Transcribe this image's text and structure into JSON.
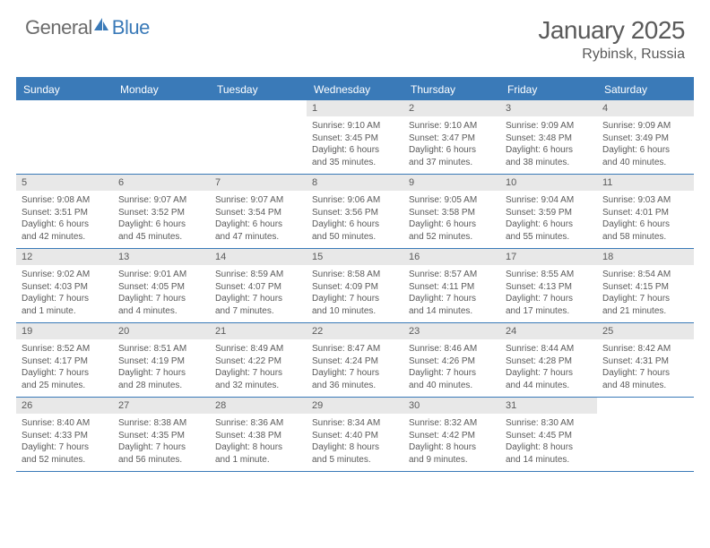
{
  "logo": {
    "general": "General",
    "blue": "Blue"
  },
  "title": "January 2025",
  "location": "Rybinsk, Russia",
  "colors": {
    "brand_blue": "#3a7ab8",
    "header_gray": "#e8e8e8",
    "text_gray": "#5a5a5a",
    "logo_gray": "#6b6b6b",
    "bg": "#ffffff"
  },
  "day_names": [
    "Sunday",
    "Monday",
    "Tuesday",
    "Wednesday",
    "Thursday",
    "Friday",
    "Saturday"
  ],
  "weeks": [
    [
      null,
      null,
      null,
      {
        "n": "1",
        "sr": "Sunrise: 9:10 AM",
        "ss": "Sunset: 3:45 PM",
        "d1": "Daylight: 6 hours",
        "d2": "and 35 minutes."
      },
      {
        "n": "2",
        "sr": "Sunrise: 9:10 AM",
        "ss": "Sunset: 3:47 PM",
        "d1": "Daylight: 6 hours",
        "d2": "and 37 minutes."
      },
      {
        "n": "3",
        "sr": "Sunrise: 9:09 AM",
        "ss": "Sunset: 3:48 PM",
        "d1": "Daylight: 6 hours",
        "d2": "and 38 minutes."
      },
      {
        "n": "4",
        "sr": "Sunrise: 9:09 AM",
        "ss": "Sunset: 3:49 PM",
        "d1": "Daylight: 6 hours",
        "d2": "and 40 minutes."
      }
    ],
    [
      {
        "n": "5",
        "sr": "Sunrise: 9:08 AM",
        "ss": "Sunset: 3:51 PM",
        "d1": "Daylight: 6 hours",
        "d2": "and 42 minutes."
      },
      {
        "n": "6",
        "sr": "Sunrise: 9:07 AM",
        "ss": "Sunset: 3:52 PM",
        "d1": "Daylight: 6 hours",
        "d2": "and 45 minutes."
      },
      {
        "n": "7",
        "sr": "Sunrise: 9:07 AM",
        "ss": "Sunset: 3:54 PM",
        "d1": "Daylight: 6 hours",
        "d2": "and 47 minutes."
      },
      {
        "n": "8",
        "sr": "Sunrise: 9:06 AM",
        "ss": "Sunset: 3:56 PM",
        "d1": "Daylight: 6 hours",
        "d2": "and 50 minutes."
      },
      {
        "n": "9",
        "sr": "Sunrise: 9:05 AM",
        "ss": "Sunset: 3:58 PM",
        "d1": "Daylight: 6 hours",
        "d2": "and 52 minutes."
      },
      {
        "n": "10",
        "sr": "Sunrise: 9:04 AM",
        "ss": "Sunset: 3:59 PM",
        "d1": "Daylight: 6 hours",
        "d2": "and 55 minutes."
      },
      {
        "n": "11",
        "sr": "Sunrise: 9:03 AM",
        "ss": "Sunset: 4:01 PM",
        "d1": "Daylight: 6 hours",
        "d2": "and 58 minutes."
      }
    ],
    [
      {
        "n": "12",
        "sr": "Sunrise: 9:02 AM",
        "ss": "Sunset: 4:03 PM",
        "d1": "Daylight: 7 hours",
        "d2": "and 1 minute."
      },
      {
        "n": "13",
        "sr": "Sunrise: 9:01 AM",
        "ss": "Sunset: 4:05 PM",
        "d1": "Daylight: 7 hours",
        "d2": "and 4 minutes."
      },
      {
        "n": "14",
        "sr": "Sunrise: 8:59 AM",
        "ss": "Sunset: 4:07 PM",
        "d1": "Daylight: 7 hours",
        "d2": "and 7 minutes."
      },
      {
        "n": "15",
        "sr": "Sunrise: 8:58 AM",
        "ss": "Sunset: 4:09 PM",
        "d1": "Daylight: 7 hours",
        "d2": "and 10 minutes."
      },
      {
        "n": "16",
        "sr": "Sunrise: 8:57 AM",
        "ss": "Sunset: 4:11 PM",
        "d1": "Daylight: 7 hours",
        "d2": "and 14 minutes."
      },
      {
        "n": "17",
        "sr": "Sunrise: 8:55 AM",
        "ss": "Sunset: 4:13 PM",
        "d1": "Daylight: 7 hours",
        "d2": "and 17 minutes."
      },
      {
        "n": "18",
        "sr": "Sunrise: 8:54 AM",
        "ss": "Sunset: 4:15 PM",
        "d1": "Daylight: 7 hours",
        "d2": "and 21 minutes."
      }
    ],
    [
      {
        "n": "19",
        "sr": "Sunrise: 8:52 AM",
        "ss": "Sunset: 4:17 PM",
        "d1": "Daylight: 7 hours",
        "d2": "and 25 minutes."
      },
      {
        "n": "20",
        "sr": "Sunrise: 8:51 AM",
        "ss": "Sunset: 4:19 PM",
        "d1": "Daylight: 7 hours",
        "d2": "and 28 minutes."
      },
      {
        "n": "21",
        "sr": "Sunrise: 8:49 AM",
        "ss": "Sunset: 4:22 PM",
        "d1": "Daylight: 7 hours",
        "d2": "and 32 minutes."
      },
      {
        "n": "22",
        "sr": "Sunrise: 8:47 AM",
        "ss": "Sunset: 4:24 PM",
        "d1": "Daylight: 7 hours",
        "d2": "and 36 minutes."
      },
      {
        "n": "23",
        "sr": "Sunrise: 8:46 AM",
        "ss": "Sunset: 4:26 PM",
        "d1": "Daylight: 7 hours",
        "d2": "and 40 minutes."
      },
      {
        "n": "24",
        "sr": "Sunrise: 8:44 AM",
        "ss": "Sunset: 4:28 PM",
        "d1": "Daylight: 7 hours",
        "d2": "and 44 minutes."
      },
      {
        "n": "25",
        "sr": "Sunrise: 8:42 AM",
        "ss": "Sunset: 4:31 PM",
        "d1": "Daylight: 7 hours",
        "d2": "and 48 minutes."
      }
    ],
    [
      {
        "n": "26",
        "sr": "Sunrise: 8:40 AM",
        "ss": "Sunset: 4:33 PM",
        "d1": "Daylight: 7 hours",
        "d2": "and 52 minutes."
      },
      {
        "n": "27",
        "sr": "Sunrise: 8:38 AM",
        "ss": "Sunset: 4:35 PM",
        "d1": "Daylight: 7 hours",
        "d2": "and 56 minutes."
      },
      {
        "n": "28",
        "sr": "Sunrise: 8:36 AM",
        "ss": "Sunset: 4:38 PM",
        "d1": "Daylight: 8 hours",
        "d2": "and 1 minute."
      },
      {
        "n": "29",
        "sr": "Sunrise: 8:34 AM",
        "ss": "Sunset: 4:40 PM",
        "d1": "Daylight: 8 hours",
        "d2": "and 5 minutes."
      },
      {
        "n": "30",
        "sr": "Sunrise: 8:32 AM",
        "ss": "Sunset: 4:42 PM",
        "d1": "Daylight: 8 hours",
        "d2": "and 9 minutes."
      },
      {
        "n": "31",
        "sr": "Sunrise: 8:30 AM",
        "ss": "Sunset: 4:45 PM",
        "d1": "Daylight: 8 hours",
        "d2": "and 14 minutes."
      },
      null
    ]
  ]
}
